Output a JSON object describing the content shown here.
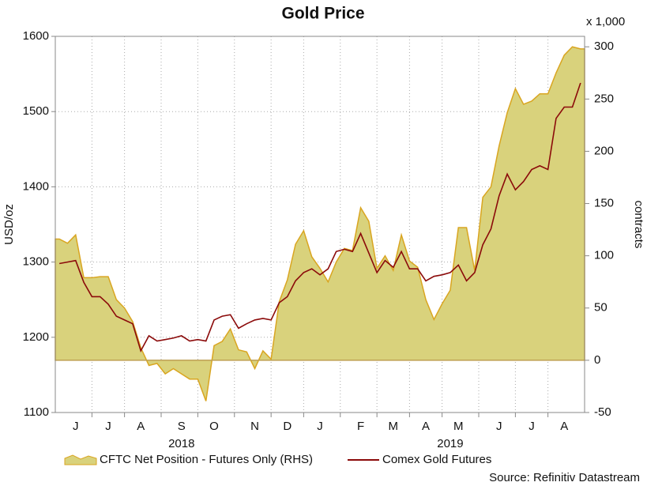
{
  "chart_data": {
    "type": "area-line",
    "title": "Gold Price",
    "ylabel": "USD/oz",
    "y2label": "contracts",
    "y2_unit": "x 1,000",
    "source": "Source: Refinitiv Datastream",
    "categories": [
      null,
      null,
      "J",
      null,
      null,
      null,
      "J",
      null,
      null,
      null,
      "A",
      null,
      null,
      null,
      null,
      "S",
      null,
      null,
      null,
      "O",
      null,
      null,
      null,
      null,
      "N",
      null,
      null,
      null,
      "D",
      null,
      null,
      null,
      "J",
      null,
      null,
      null,
      null,
      "F",
      null,
      null,
      null,
      "M",
      null,
      null,
      null,
      "A",
      null,
      null,
      null,
      "M",
      null,
      null,
      null,
      null,
      "J",
      null,
      null,
      null,
      "J",
      null,
      null,
      null,
      "A",
      null,
      null
    ],
    "group_labels": [
      "2018",
      "2019"
    ],
    "ylim": [
      1100,
      1600
    ],
    "yticks": [
      1100,
      1200,
      1300,
      1400,
      1500,
      1600
    ],
    "y2lim": [
      -50,
      310
    ],
    "y2ticks": [
      -50,
      0,
      50,
      100,
      150,
      200,
      250,
      300
    ],
    "grid": true,
    "series": [
      {
        "name": "CFTC Net Position - Futures Only (RHS)",
        "color": "#d9d27c",
        "edge_color": "#d9a520",
        "axis": "y2",
        "values": [
          116,
          112,
          120,
          79,
          79,
          80,
          80,
          58,
          50,
          37,
          12,
          -5,
          -3,
          -13,
          -8,
          -13,
          -18,
          -18,
          -39,
          14,
          18,
          30,
          10,
          8,
          -8,
          9,
          1,
          56,
          77,
          111,
          124,
          99,
          88,
          75,
          94,
          107,
          105,
          146,
          133,
          88,
          100,
          86,
          120,
          95,
          89,
          58,
          39,
          54,
          67,
          127,
          127,
          86,
          156,
          166,
          205,
          237,
          260,
          245,
          248,
          255,
          255,
          275,
          292,
          300,
          298
        ]
      },
      {
        "name": "Comex Gold Futures",
        "color": "#8b0a0a",
        "axis": "y",
        "values": [
          1298,
          1300,
          1302,
          1273,
          1254,
          1254,
          1244,
          1228,
          1223,
          1218,
          1182,
          1202,
          1195,
          1197,
          1199,
          1202,
          1195,
          1197,
          1195,
          1223,
          1228,
          1230,
          1212,
          1218,
          1223,
          1225,
          1223,
          1246,
          1254,
          1275,
          1286,
          1291,
          1283,
          1291,
          1314,
          1317,
          1314,
          1338,
          1312,
          1286,
          1302,
          1293,
          1314,
          1291,
          1291,
          1275,
          1281,
          1283,
          1286,
          1296,
          1275,
          1286,
          1323,
          1344,
          1388,
          1417,
          1396,
          1407,
          1423,
          1428,
          1423,
          1491,
          1506,
          1506,
          1538
        ]
      }
    ]
  }
}
